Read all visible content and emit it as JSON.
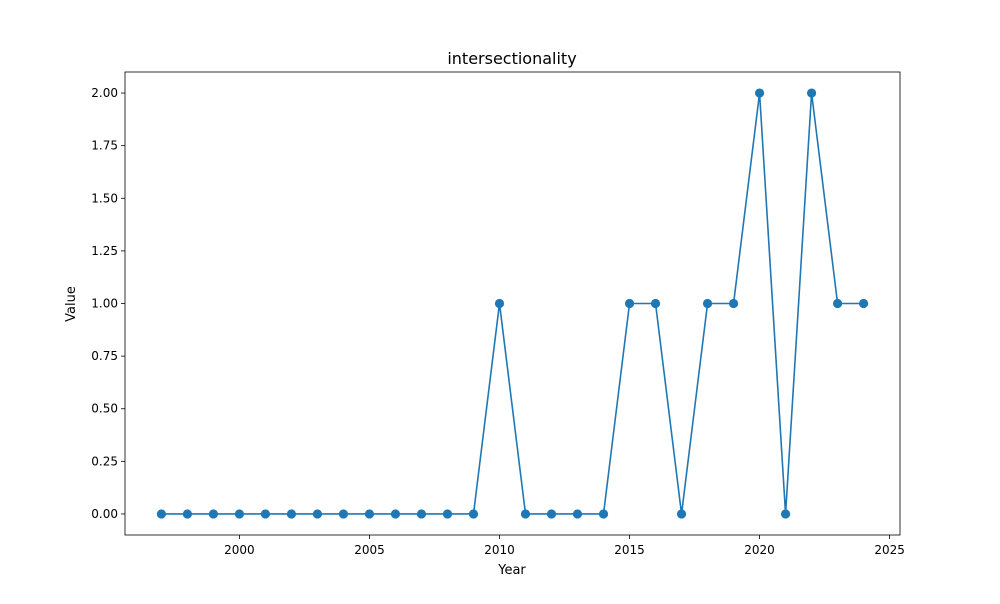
{
  "chart_data": {
    "type": "line",
    "title": "intersectionality",
    "xlabel": "Year",
    "ylabel": "Value",
    "xlim": [
      1995.6,
      2025.4
    ],
    "ylim": [
      -0.1,
      2.1
    ],
    "xticks": [
      2000,
      2005,
      2010,
      2015,
      2020,
      2025
    ],
    "yticks": [
      0.0,
      0.25,
      0.5,
      0.75,
      1.0,
      1.25,
      1.5,
      1.75,
      2.0
    ],
    "ytick_labels": [
      "0.00",
      "0.25",
      "0.50",
      "0.75",
      "1.00",
      "1.25",
      "1.50",
      "1.75",
      "2.00"
    ],
    "grid": false,
    "series": [
      {
        "name": "intersectionality",
        "color": "#1f77b4",
        "marker": "circle",
        "x": [
          1997,
          1998,
          1999,
          2000,
          2001,
          2002,
          2003,
          2004,
          2005,
          2006,
          2007,
          2008,
          2009,
          2010,
          2011,
          2012,
          2013,
          2014,
          2015,
          2016,
          2017,
          2018,
          2019,
          2020,
          2021,
          2022,
          2023,
          2024
        ],
        "y": [
          0,
          0,
          0,
          0,
          0,
          0,
          0,
          0,
          0,
          0,
          0,
          0,
          0,
          1,
          0,
          0,
          0,
          0,
          1,
          1,
          0,
          1,
          1,
          2,
          0,
          2,
          1,
          1
        ]
      }
    ]
  }
}
